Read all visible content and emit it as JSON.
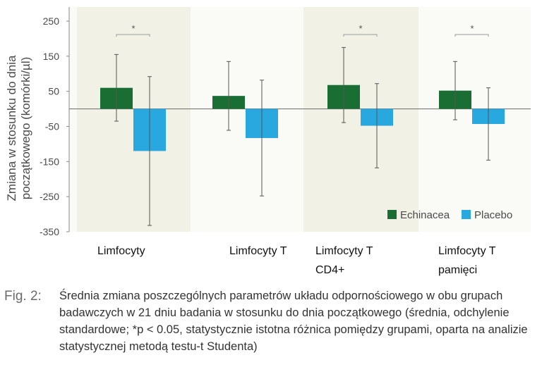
{
  "chart_data": {
    "type": "bar",
    "ylabel": "Zmiana w stosunku do dnia początkowego (komórki/µl)",
    "ylabel_lines": [
      "Zmiana w stosunku do dnia",
      "początkowego (komórki/µl)"
    ],
    "ylim": [
      -350,
      250
    ],
    "yticks": [
      250,
      150,
      50,
      -50,
      -150,
      -250,
      -350
    ],
    "categories": [
      {
        "lines": [
          "Limfocyty"
        ]
      },
      {
        "lines": [
          "Limfocyty T"
        ]
      },
      {
        "lines": [
          "Limfocyty T",
          "CD4+"
        ]
      },
      {
        "lines": [
          "Limfocyty T",
          "pamięci"
        ]
      }
    ],
    "series": [
      {
        "name": "Echinacea",
        "color": "#1a6e34",
        "values": [
          60,
          37,
          68,
          52
        ],
        "sd": [
          95,
          98,
          107,
          83
        ]
      },
      {
        "name": "Placebo",
        "color": "#29a8e0",
        "values": [
          -120,
          -83,
          -48,
          -43
        ],
        "sd": [
          212,
          165,
          120,
          103
        ]
      }
    ],
    "significance": [
      {
        "category_index": 0,
        "label": "*"
      },
      {
        "category_index": 2,
        "label": "*"
      },
      {
        "category_index": 3,
        "label": "*"
      }
    ],
    "legend_position": "bottom-right",
    "grid": false
  },
  "caption": {
    "label": "Fig. 2:",
    "text": "Średnia zmiana poszczególnych parametrów układu odpornościowego w obu grupach badawczych w 21 dniu badania w stosunku do dnia początkowego (średnia, odchylenie standardowe; *p < 0.05, statystycznie istotna różnica pomiędzy grupami, oparta na analizie statystycznej metodą testu-t Studenta)"
  }
}
